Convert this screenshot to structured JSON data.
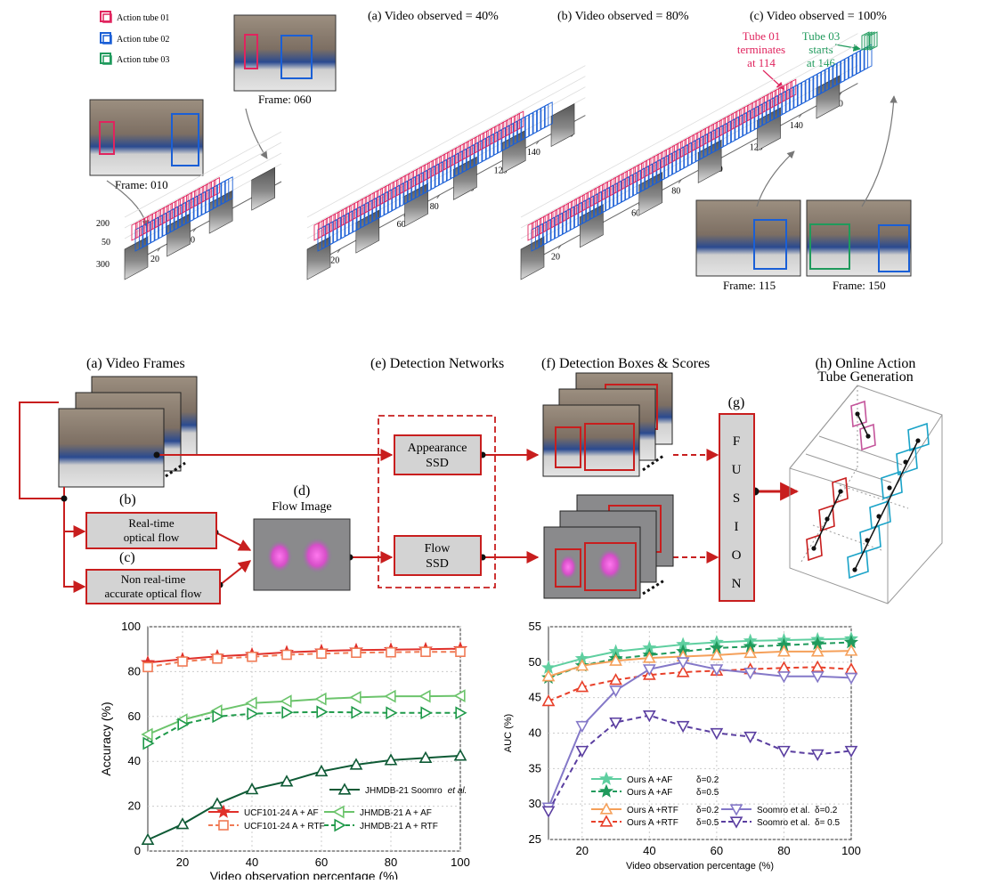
{
  "top": {
    "legend": [
      {
        "label": "Action tube 01",
        "color": "#e0245e"
      },
      {
        "label": "Action tube 02",
        "color": "#1a5fd6"
      },
      {
        "label": "Action tube 03",
        "color": "#1f9a5c"
      }
    ],
    "panel_titles": [
      "(a) Video observed = 40%",
      "(b) Video observed = 80%",
      "(c) Video observed = 100%"
    ],
    "frame_captions": {
      "f010": "Frame: 010",
      "f060": "Frame: 060",
      "f115": "Frame: 115",
      "f150": "Frame: 150"
    },
    "annot_tube01": [
      "Tube 01",
      "terminates",
      "at 114"
    ],
    "annot_tube03": [
      "Tube 03",
      "starts",
      "at 146"
    ],
    "time_ticks": [
      "0",
      "20",
      "40",
      "60",
      "80",
      "100",
      "120",
      "140"
    ],
    "y_ticks": [
      "200",
      "50",
      "300"
    ]
  },
  "pipeline": {
    "a_title": "(a) Video Frames",
    "b_label": "(b)",
    "b_box": [
      "Real-time",
      "optical flow"
    ],
    "c_label": "(c)",
    "c_box": [
      "Non real-time",
      "accurate optical flow"
    ],
    "d_label": "(d)",
    "d_title": "Flow Image",
    "e_title": "(e) Detection Networks",
    "e_box1": [
      "Appearance",
      "SSD"
    ],
    "e_box2": [
      "Flow",
      "SSD"
    ],
    "f_title": "(f) Detection Boxes & Scores",
    "g_label": "(g)",
    "fusion": [
      "F",
      "U",
      "S",
      "I",
      "O",
      "N"
    ],
    "h_title": [
      "(h) Online Action",
      "Tube Generation"
    ],
    "accent": "#c81e1e",
    "box_fill": "#d3d3d3"
  },
  "chart_data": [
    {
      "type": "line",
      "xlabel": "Video observation percentage (%)",
      "ylabel": "Accuracy (%)",
      "xlim": [
        10,
        100
      ],
      "ylim": [
        0,
        100
      ],
      "xticks": [
        20,
        40,
        60,
        80,
        100
      ],
      "yticks": [
        0,
        20,
        40,
        60,
        80,
        100
      ],
      "grid": true,
      "x": [
        10,
        20,
        30,
        40,
        50,
        60,
        70,
        80,
        90,
        100
      ],
      "series": [
        {
          "name": "UCF101-24 A + AF",
          "color": "#e0302a",
          "dash": false,
          "marker": "star",
          "values": [
            84,
            85.5,
            86.8,
            87.6,
            88.6,
            89.2,
            89.6,
            89.8,
            90,
            90.2
          ]
        },
        {
          "name": "UCF101-24 A + RTF",
          "color": "#f07a55",
          "dash": true,
          "marker": "square",
          "values": [
            82,
            84.5,
            85.8,
            86.6,
            87.5,
            88,
            88.4,
            88.6,
            88.8,
            88.8
          ]
        },
        {
          "name": "JHMDB-21 A + AF",
          "color": "#6cc46c",
          "dash": false,
          "marker": "tri-left",
          "values": [
            52,
            58.5,
            62.5,
            66,
            66.8,
            67.8,
            68.5,
            69,
            69,
            69.2
          ]
        },
        {
          "name": "JHMDB-21 A + RTF",
          "color": "#1f9a4a",
          "dash": true,
          "marker": "tri-right",
          "values": [
            48,
            56.5,
            60,
            61.2,
            61.8,
            62,
            61.8,
            61.6,
            61.6,
            61.6
          ]
        },
        {
          "name": "JHMDB-21 Soomro",
          "name_suffix": "et al.",
          "color": "#0e5a35",
          "dash": false,
          "marker": "tri-up",
          "values": [
            5,
            12,
            21,
            27.5,
            31,
            35.5,
            38.5,
            40.5,
            41.5,
            42.5
          ]
        }
      ],
      "legend": "bottom-right"
    },
    {
      "type": "line",
      "xlabel": "Video observation percentage (%)",
      "ylabel": "AUC (%)",
      "xlim": [
        10,
        100
      ],
      "ylim": [
        25,
        55
      ],
      "xticks": [
        20,
        40,
        60,
        80,
        100
      ],
      "yticks": [
        25,
        30,
        35,
        40,
        45,
        50,
        55
      ],
      "grid": true,
      "x": [
        10,
        20,
        30,
        40,
        50,
        60,
        70,
        80,
        90,
        100
      ],
      "series": [
        {
          "name": "Ours A +AF",
          "delta": "δ=0.2",
          "color": "#5fcfa0",
          "dash": false,
          "marker": "star",
          "values": [
            49.2,
            50.5,
            51.5,
            52,
            52.5,
            52.8,
            53,
            53.1,
            53.2,
            53.3
          ]
        },
        {
          "name": "Ours A +AF",
          "delta": "δ=0.5",
          "color": "#1f9a5c",
          "dash": true,
          "marker": "star",
          "values": [
            47.8,
            49.5,
            50.5,
            51,
            51.5,
            52,
            52.2,
            52.4,
            52.6,
            52.8
          ]
        },
        {
          "name": "Ours A +RTF",
          "delta": "δ=0.2",
          "color": "#f5a05a",
          "dash": false,
          "marker": "tri-up",
          "values": [
            48,
            49.5,
            50.2,
            50.6,
            50.8,
            51,
            51.3,
            51.5,
            51.5,
            51.6
          ]
        },
        {
          "name": "Ours A +RTF",
          "delta": "δ=0.5",
          "color": "#e8402a",
          "dash": true,
          "marker": "tri-up",
          "values": [
            44.5,
            46.5,
            47.5,
            48.2,
            48.6,
            48.8,
            49,
            49.2,
            49.3,
            49
          ]
        },
        {
          "name": "Soomro et al.",
          "delta": "δ=0.2",
          "color": "#8478c8",
          "dash": false,
          "marker": "tri-down",
          "values": [
            29.5,
            41,
            46,
            49,
            50,
            49,
            48.5,
            48,
            48,
            47.8
          ]
        },
        {
          "name": "Soomro et al.",
          "delta": "δ= 0.5",
          "color": "#5a3ea0",
          "dash": true,
          "marker": "tri-down",
          "values": [
            29,
            37.5,
            41.5,
            42.5,
            41,
            40,
            39.5,
            37.5,
            37,
            37.5
          ]
        }
      ],
      "legend": "bottom"
    }
  ]
}
